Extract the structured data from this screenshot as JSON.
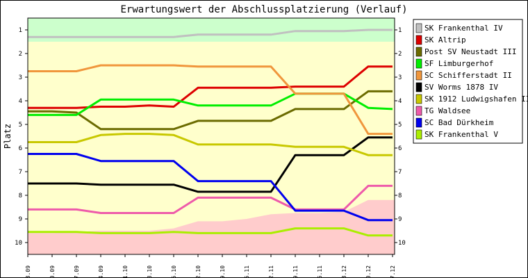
{
  "chart_data": {
    "type": "line",
    "title": "Erwartungswert der Abschlussplatzierung (Verlauf)",
    "ylabel": "Platz",
    "xlabel": "",
    "ylim": [
      0.5,
      10.5
    ],
    "y_inverted": true,
    "y_ticks": [
      "1",
      "2",
      "3",
      "4",
      "5",
      "6",
      "7",
      "8",
      "9",
      "10"
    ],
    "categories": [
      "03.09",
      "10.09",
      "17.09",
      "24.09",
      "01.10",
      "08.10",
      "15.10",
      "22.10",
      "29.10",
      "05.11",
      "12.11",
      "19.11",
      "26.11",
      "03.12",
      "10.12",
      "17.12"
    ],
    "grid": false,
    "legend_position": "right",
    "background_bands": {
      "top_band_color": "#ccffcc",
      "top_band_to_rank": 1.5,
      "middle_color": "#ffffcc",
      "bottom_band_color": "#ffcccc",
      "bottom_band_from_rank": [
        9.6,
        9.6,
        9.55,
        9.5,
        9.5,
        9.5,
        9.4,
        9.1,
        9.1,
        9.0,
        8.8,
        8.75,
        8.75,
        8.7,
        8.2,
        8.2
      ]
    },
    "series": [
      {
        "name": "SK Frankenthal IV",
        "color": "#c0c0c0",
        "values": [
          1.3,
          1.3,
          1.3,
          1.3,
          1.3,
          1.3,
          1.3,
          1.2,
          1.2,
          1.2,
          1.2,
          1.05,
          1.05,
          1.05,
          1.0,
          1.0
        ]
      },
      {
        "name": "SK Altrip",
        "color": "#dd0000",
        "values": [
          4.3,
          4.3,
          4.3,
          4.25,
          4.25,
          4.2,
          4.25,
          3.45,
          3.45,
          3.45,
          3.45,
          3.4,
          3.4,
          3.4,
          2.55,
          2.55
        ]
      },
      {
        "name": "Post SV Neustadt III",
        "color": "#6b6b00",
        "values": [
          4.45,
          4.45,
          4.5,
          5.2,
          5.2,
          5.2,
          5.2,
          4.85,
          4.85,
          4.85,
          4.85,
          4.35,
          4.35,
          4.35,
          3.6,
          3.6
        ]
      },
      {
        "name": "SF Limburgerhof",
        "color": "#00ee00",
        "values": [
          4.6,
          4.6,
          4.6,
          3.95,
          3.95,
          3.95,
          3.95,
          4.2,
          4.2,
          4.2,
          4.2,
          3.7,
          3.7,
          3.7,
          4.3,
          4.35
        ]
      },
      {
        "name": "SC Schifferstadt II",
        "color": "#f0963c",
        "values": [
          2.75,
          2.75,
          2.75,
          2.5,
          2.5,
          2.5,
          2.5,
          2.55,
          2.55,
          2.55,
          2.55,
          3.7,
          3.7,
          3.7,
          5.4,
          5.4
        ]
      },
      {
        "name": "SV Worms 1878 IV",
        "color": "#000000",
        "values": [
          7.5,
          7.5,
          7.5,
          7.55,
          7.55,
          7.55,
          7.55,
          7.85,
          7.85,
          7.85,
          7.85,
          6.3,
          6.3,
          6.3,
          5.55,
          5.55
        ]
      },
      {
        "name": "SK 1912 Ludwigshafen II",
        "color": "#c8c800",
        "values": [
          5.75,
          5.75,
          5.75,
          5.45,
          5.4,
          5.4,
          5.45,
          5.85,
          5.85,
          5.85,
          5.85,
          5.95,
          5.95,
          5.95,
          6.3,
          6.3
        ]
      },
      {
        "name": "TG Waldsee",
        "color": "#ee5aaa",
        "values": [
          8.6,
          8.6,
          8.6,
          8.75,
          8.75,
          8.75,
          8.75,
          8.1,
          8.1,
          8.1,
          8.1,
          8.6,
          8.6,
          8.6,
          7.6,
          7.6
        ]
      },
      {
        "name": "SC Bad Dürkheim",
        "color": "#0000ee",
        "values": [
          6.25,
          6.25,
          6.25,
          6.55,
          6.55,
          6.55,
          6.55,
          7.4,
          7.4,
          7.4,
          7.4,
          8.65,
          8.65,
          8.65,
          9.05,
          9.05
        ]
      },
      {
        "name": "SK Frankenthal V",
        "color": "#aaee00",
        "values": [
          9.55,
          9.55,
          9.55,
          9.6,
          9.6,
          9.6,
          9.55,
          9.6,
          9.6,
          9.6,
          9.6,
          9.4,
          9.4,
          9.4,
          9.7,
          9.7
        ]
      }
    ]
  }
}
